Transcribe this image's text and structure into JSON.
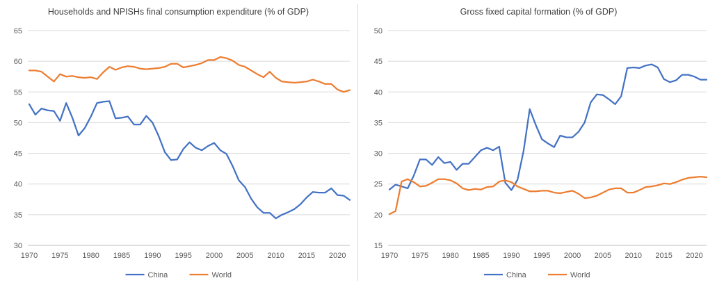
{
  "colors": {
    "china": "#4472c4",
    "world": "#ed7d31",
    "grid": "#d9d9d9",
    "text": "#595959"
  },
  "chart_data": [
    {
      "type": "line",
      "title": "Households and NPISHs final consumption expenditure (% of GDP)",
      "xlim": [
        1970,
        2022
      ],
      "ylim": [
        30,
        65
      ],
      "yticks": [
        30,
        35,
        40,
        45,
        50,
        55,
        60,
        65
      ],
      "xticks": [
        1970,
        1975,
        1980,
        1985,
        1990,
        1995,
        2000,
        2005,
        2010,
        2015,
        2020
      ],
      "grid": "horizontal",
      "legend": "bottom",
      "x": [
        1970,
        1971,
        1972,
        1973,
        1974,
        1975,
        1976,
        1977,
        1978,
        1979,
        1980,
        1981,
        1982,
        1983,
        1984,
        1985,
        1986,
        1987,
        1988,
        1989,
        1990,
        1991,
        1992,
        1993,
        1994,
        1995,
        1996,
        1997,
        1998,
        1999,
        2000,
        2001,
        2002,
        2003,
        2004,
        2005,
        2006,
        2007,
        2008,
        2009,
        2010,
        2011,
        2012,
        2013,
        2014,
        2015,
        2016,
        2017,
        2018,
        2019,
        2020,
        2021,
        2022
      ],
      "series": [
        {
          "name": "China",
          "color": "#4472c4",
          "values": [
            53.0,
            51.3,
            52.3,
            52.0,
            51.9,
            50.3,
            53.2,
            50.8,
            47.9,
            49.1,
            51.0,
            53.2,
            53.4,
            53.5,
            50.7,
            50.8,
            51.0,
            49.7,
            49.7,
            51.1,
            50.0,
            47.8,
            45.2,
            43.9,
            44.0,
            45.7,
            46.8,
            45.9,
            45.5,
            46.2,
            46.7,
            45.5,
            44.9,
            42.9,
            40.6,
            39.5,
            37.6,
            36.2,
            35.3,
            35.3,
            34.4,
            35.0,
            35.4,
            35.9,
            36.7,
            37.8,
            38.7,
            38.6,
            38.6,
            39.3,
            38.2,
            38.1,
            37.4
          ]
        },
        {
          "name": "World",
          "color": "#ed7d31",
          "values": [
            58.5,
            58.5,
            58.3,
            57.5,
            56.7,
            57.9,
            57.5,
            57.6,
            57.4,
            57.3,
            57.4,
            57.1,
            58.2,
            59.1,
            58.6,
            59.0,
            59.2,
            59.1,
            58.8,
            58.7,
            58.8,
            58.9,
            59.1,
            59.6,
            59.6,
            59.0,
            59.2,
            59.4,
            59.7,
            60.2,
            60.2,
            60.7,
            60.5,
            60.1,
            59.4,
            59.1,
            58.5,
            57.9,
            57.4,
            58.3,
            57.3,
            56.7,
            56.6,
            56.5,
            56.6,
            56.7,
            57.0,
            56.7,
            56.3,
            56.3,
            55.4,
            55.0,
            55.3
          ]
        }
      ]
    },
    {
      "type": "line",
      "title": "Gross fixed capital formation (% of GDP)",
      "xlim": [
        1970,
        2022
      ],
      "ylim": [
        15,
        50
      ],
      "yticks": [
        15,
        20,
        25,
        30,
        35,
        40,
        45,
        50
      ],
      "xticks": [
        1970,
        1975,
        1980,
        1985,
        1990,
        1995,
        2000,
        2005,
        2010,
        2015,
        2020
      ],
      "grid": "horizontal",
      "legend": "bottom",
      "x": [
        1970,
        1971,
        1972,
        1973,
        1974,
        1975,
        1976,
        1977,
        1978,
        1979,
        1980,
        1981,
        1982,
        1983,
        1984,
        1985,
        1986,
        1987,
        1988,
        1989,
        1990,
        1991,
        1992,
        1993,
        1994,
        1995,
        1996,
        1997,
        1998,
        1999,
        2000,
        2001,
        2002,
        2003,
        2004,
        2005,
        2006,
        2007,
        2008,
        2009,
        2010,
        2011,
        2012,
        2013,
        2014,
        2015,
        2016,
        2017,
        2018,
        2019,
        2020,
        2021,
        2022
      ],
      "series": [
        {
          "name": "China",
          "color": "#4472c4",
          "values": [
            24.1,
            24.9,
            24.6,
            24.3,
            26.4,
            29.0,
            29.0,
            28.1,
            29.4,
            28.4,
            28.6,
            27.3,
            28.3,
            28.3,
            29.4,
            30.5,
            30.9,
            30.5,
            31.1,
            25.2,
            24.0,
            25.7,
            30.4,
            37.2,
            34.6,
            32.3,
            31.6,
            31.0,
            32.9,
            32.6,
            32.6,
            33.5,
            35.0,
            38.3,
            39.6,
            39.5,
            38.8,
            38.0,
            39.3,
            43.9,
            44.0,
            43.9,
            44.3,
            44.5,
            44.0,
            42.1,
            41.6,
            41.9,
            42.8,
            42.8,
            42.5,
            42.0,
            42.0
          ]
        },
        {
          "name": "World",
          "color": "#ed7d31",
          "values": [
            20.1,
            20.6,
            25.4,
            25.8,
            25.3,
            24.6,
            24.7,
            25.2,
            25.8,
            25.8,
            25.6,
            25.1,
            24.3,
            24.0,
            24.2,
            24.1,
            24.5,
            24.6,
            25.4,
            25.6,
            25.3,
            24.6,
            24.2,
            23.8,
            23.8,
            23.9,
            23.9,
            23.6,
            23.5,
            23.7,
            23.9,
            23.4,
            22.7,
            22.8,
            23.1,
            23.6,
            24.1,
            24.3,
            24.3,
            23.6,
            23.6,
            24.0,
            24.5,
            24.6,
            24.8,
            25.1,
            25.0,
            25.3,
            25.7,
            26.0,
            26.1,
            26.2,
            26.1
          ]
        }
      ]
    }
  ]
}
